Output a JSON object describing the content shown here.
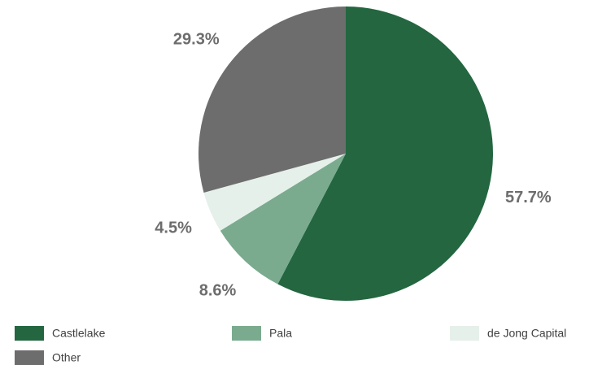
{
  "chart_data": {
    "type": "pie",
    "categories": [
      "Castlelake",
      "Pala",
      "de Jong Capital",
      "Other"
    ],
    "values": [
      57.7,
      8.6,
      4.5,
      29.3
    ],
    "value_labels": [
      "57.7%",
      "8.6%",
      "4.5%",
      "29.3%"
    ],
    "colors": [
      "#236640",
      "#7aab8e",
      "#e6f0ea",
      "#6d6d6d"
    ]
  }
}
